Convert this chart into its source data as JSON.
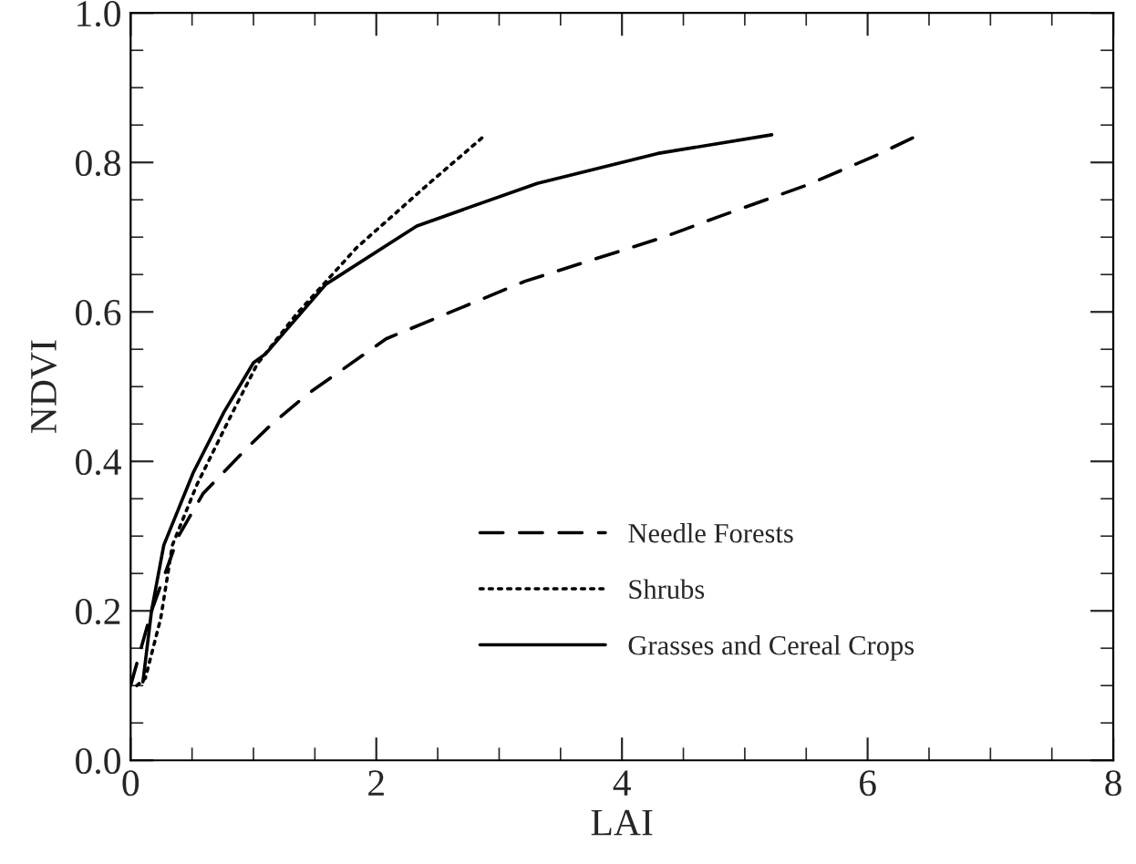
{
  "chart_data": {
    "type": "line",
    "xlabel": "LAI",
    "ylabel": "NDVI",
    "xlim": [
      0,
      8
    ],
    "ylim": [
      0.0,
      1.0
    ],
    "xticks": [
      0,
      2,
      4,
      6,
      8
    ],
    "yticks": [
      {
        "value": 0.0,
        "label": "0.0"
      },
      {
        "value": 0.2,
        "label": "0.2"
      },
      {
        "value": 0.4,
        "label": "0.4"
      },
      {
        "value": 0.6,
        "label": "0.6"
      },
      {
        "value": 0.8,
        "label": "0.8"
      },
      {
        "value": 1.0,
        "label": "1.0"
      }
    ],
    "grid": false,
    "legend": "bottom right",
    "marker": "none",
    "series": [
      {
        "name": "Needle Forests",
        "color": "#000000",
        "line_style": "dashed",
        "x": [
          0.0,
          0.17,
          0.39,
          0.59,
          0.96,
          1.15,
          1.44,
          2.08,
          3.21,
          4.34,
          4.78,
          5.51,
          6.05,
          6.42
        ],
        "values": [
          0.1,
          0.2,
          0.3,
          0.357,
          0.42,
          0.45,
          0.49,
          0.564,
          0.641,
          0.7,
          0.727,
          0.77,
          0.808,
          0.837
        ]
      },
      {
        "name": "Shrubs",
        "color": "#000000",
        "line_style": "dotted",
        "x": [
          0.05,
          0.12,
          0.245,
          0.34,
          0.54,
          0.81,
          1.03,
          1.35,
          1.84,
          2.43,
          2.89
        ],
        "values": [
          0.1,
          0.11,
          0.19,
          0.288,
          0.369,
          0.459,
          0.53,
          0.597,
          0.686,
          0.772,
          0.837
        ]
      },
      {
        "name": "Grasses and Cereal Crops",
        "color": "#000000",
        "line_style": "solid",
        "x": [
          0.1,
          0.17,
          0.27,
          0.51,
          0.76,
          1.0,
          1.1,
          1.59,
          2.33,
          3.31,
          4.29,
          5.22
        ],
        "values": [
          0.105,
          0.2,
          0.288,
          0.385,
          0.466,
          0.532,
          0.544,
          0.637,
          0.715,
          0.772,
          0.812,
          0.837
        ]
      }
    ]
  }
}
